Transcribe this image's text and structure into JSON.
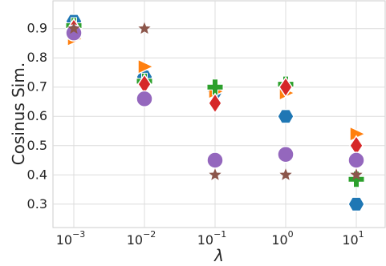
{
  "chart_data": {
    "type": "scatter",
    "xscale": "log",
    "x": [
      0.001,
      0.01,
      0.1,
      1,
      10
    ],
    "xtick_labels": [
      {
        "base": "10",
        "exp": "−3"
      },
      {
        "base": "10",
        "exp": "−2"
      },
      {
        "base": "10",
        "exp": "−1"
      },
      {
        "base": "10",
        "exp": "0"
      },
      {
        "base": "10",
        "exp": "1"
      }
    ],
    "xlabel": "λ",
    "ylabel": "Cosinus Sim.",
    "ylim": [
      0.22,
      0.995
    ],
    "yticks": [
      "0.3",
      "0.4",
      "0.5",
      "0.6",
      "0.7",
      "0.8",
      "0.9"
    ],
    "grid": true,
    "series": [
      {
        "marker": "hexagon",
        "color": "#1f77b4",
        "values": [
          0.925,
          0.735,
          0.685,
          0.6,
          0.3
        ]
      },
      {
        "marker": "triangle-right",
        "color": "#ff7f0e",
        "values": [
          0.865,
          0.77,
          0.685,
          0.68,
          0.54
        ]
      },
      {
        "marker": "plus",
        "color": "#2ca02c",
        "values": [
          0.91,
          0.72,
          0.7,
          0.71,
          0.385
        ]
      },
      {
        "marker": "diamond",
        "color": "#d62728",
        "values": [
          0.9,
          0.71,
          0.645,
          0.7,
          0.5
        ]
      },
      {
        "marker": "circle",
        "color": "#9467bd",
        "values": [
          0.885,
          0.66,
          0.45,
          0.47,
          0.45
        ]
      },
      {
        "marker": "star",
        "color": "#8c564b",
        "values": [
          0.9,
          0.9,
          0.4,
          0.4,
          0.4
        ]
      }
    ]
  }
}
